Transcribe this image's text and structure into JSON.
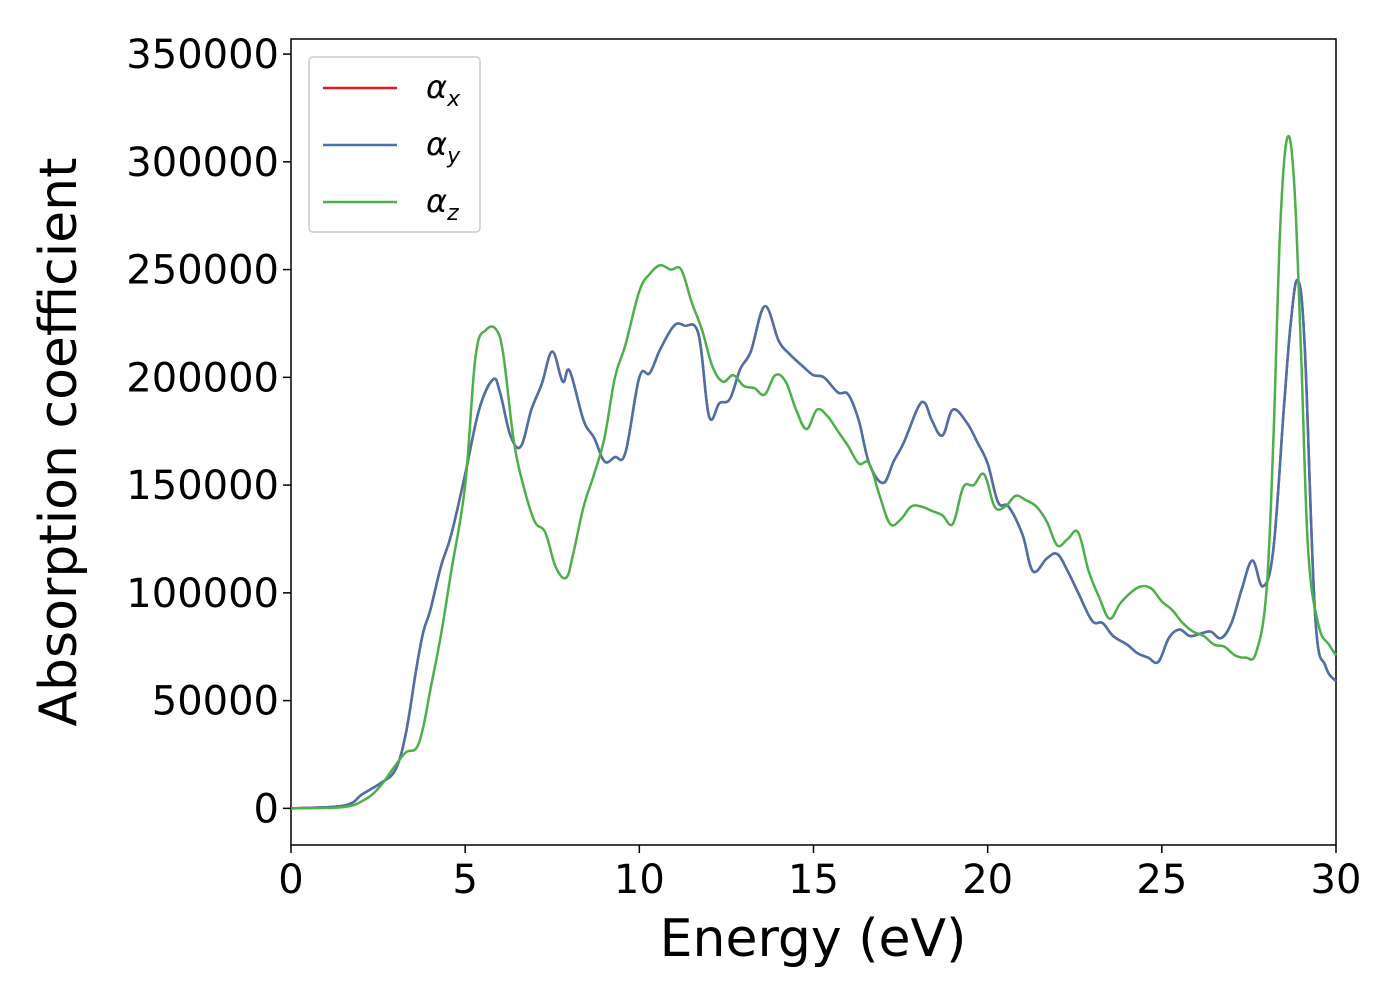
{
  "chart_data": {
    "type": "line",
    "xlabel": "Energy (eV)",
    "ylabel": "Absorption coefficient",
    "xlim": [
      0,
      30
    ],
    "ylim": [
      -17000,
      357000
    ],
    "xticks": [
      0,
      5,
      10,
      15,
      20,
      25,
      30
    ],
    "yticks": [
      0,
      50000,
      100000,
      150000,
      200000,
      250000,
      300000,
      350000
    ],
    "grid": false,
    "legend_position": "top-left",
    "series": [
      {
        "name": "αx",
        "name_base": "α",
        "name_sub": "x",
        "color": "#e41a1c",
        "x": [
          0,
          1,
          1.5,
          1.8,
          2,
          2.3,
          2.6,
          3,
          3.3,
          3.6,
          3.8,
          4,
          4.3,
          4.6,
          5,
          5.4,
          5.8,
          6,
          6.3,
          6.6,
          6.9,
          7.2,
          7.5,
          7.8,
          8,
          8.4,
          8.7,
          9,
          9.3,
          9.6,
          10,
          10.3,
          10.6,
          11,
          11.3,
          11.7,
          12,
          12.3,
          12.6,
          12.9,
          13.2,
          13.6,
          14,
          14.3,
          14.7,
          15,
          15.3,
          15.7,
          16,
          16.3,
          16.6,
          17,
          17.3,
          17.6,
          18,
          18.2,
          18.4,
          18.7,
          19,
          19.4,
          19.7,
          20,
          20.3,
          20.6,
          21,
          21.3,
          21.7,
          22,
          22.3,
          22.6,
          23,
          23.3,
          23.6,
          24,
          24.3,
          24.6,
          24.9,
          25.2,
          25.5,
          25.8,
          26.1,
          26.4,
          26.7,
          27,
          27.3,
          27.6,
          27.9,
          28.2,
          28.5,
          28.7,
          28.9,
          29.1,
          29.4,
          29.7,
          30
        ],
        "values": [
          0,
          500,
          1200,
          3000,
          6000,
          9000,
          12000,
          18000,
          35000,
          65000,
          82000,
          92000,
          112000,
          127000,
          155000,
          185000,
          199000,
          193000,
          173000,
          168000,
          185000,
          197000,
          212000,
          198000,
          203000,
          180000,
          172000,
          161000,
          163000,
          165000,
          200000,
          202000,
          213000,
          224000,
          224000,
          220000,
          182000,
          188000,
          190000,
          204000,
          212000,
          233000,
          217000,
          211000,
          205000,
          201000,
          200000,
          193000,
          192000,
          180000,
          160000,
          151000,
          161000,
          170000,
          186000,
          188000,
          180000,
          173000,
          185000,
          179000,
          170000,
          160000,
          142000,
          140000,
          127000,
          110000,
          116000,
          118000,
          110000,
          100000,
          87000,
          86000,
          80000,
          76000,
          72000,
          70000,
          68000,
          79000,
          83000,
          80000,
          81000,
          82000,
          79000,
          86000,
          102000,
          115000,
          103000,
          120000,
          185000,
          225000,
          245000,
          215000,
          90000,
          66000,
          59000
        ],
        "legend_label": "α"
      },
      {
        "name": "αy",
        "name_base": "α",
        "name_sub": "y",
        "color": "#4a72a8",
        "x": [
          0,
          1,
          1.5,
          1.8,
          2,
          2.3,
          2.6,
          3,
          3.3,
          3.6,
          3.8,
          4,
          4.3,
          4.6,
          5,
          5.4,
          5.8,
          6,
          6.3,
          6.6,
          6.9,
          7.2,
          7.5,
          7.8,
          8,
          8.4,
          8.7,
          9,
          9.3,
          9.6,
          10,
          10.3,
          10.6,
          11,
          11.3,
          11.7,
          12,
          12.3,
          12.6,
          12.9,
          13.2,
          13.6,
          14,
          14.3,
          14.7,
          15,
          15.3,
          15.7,
          16,
          16.3,
          16.6,
          17,
          17.3,
          17.6,
          18,
          18.2,
          18.4,
          18.7,
          19,
          19.4,
          19.7,
          20,
          20.3,
          20.6,
          21,
          21.3,
          21.7,
          22,
          22.3,
          22.6,
          23,
          23.3,
          23.6,
          24,
          24.3,
          24.6,
          24.9,
          25.2,
          25.5,
          25.8,
          26.1,
          26.4,
          26.7,
          27,
          27.3,
          27.6,
          27.9,
          28.2,
          28.5,
          28.7,
          28.9,
          29.1,
          29.4,
          29.7,
          30
        ],
        "values": [
          0,
          500,
          1200,
          3000,
          6000,
          9000,
          12000,
          18000,
          35000,
          65000,
          82000,
          92000,
          112000,
          127000,
          155000,
          185000,
          199000,
          193000,
          173000,
          168000,
          185000,
          197000,
          212000,
          198000,
          203000,
          180000,
          172000,
          161000,
          163000,
          165000,
          200000,
          202000,
          213000,
          224000,
          224000,
          220000,
          182000,
          188000,
          190000,
          204000,
          212000,
          233000,
          217000,
          211000,
          205000,
          201000,
          200000,
          193000,
          192000,
          180000,
          160000,
          151000,
          161000,
          170000,
          186000,
          188000,
          180000,
          173000,
          185000,
          179000,
          170000,
          160000,
          142000,
          140000,
          127000,
          110000,
          116000,
          118000,
          110000,
          100000,
          87000,
          86000,
          80000,
          76000,
          72000,
          70000,
          68000,
          79000,
          83000,
          80000,
          81000,
          82000,
          79000,
          86000,
          102000,
          115000,
          103000,
          120000,
          185000,
          225000,
          245000,
          215000,
          90000,
          66000,
          59000
        ],
        "legend_label": "α"
      },
      {
        "name": "αz",
        "name_base": "α",
        "name_sub": "z",
        "color": "#4daf4a",
        "x": [
          0,
          1,
          1.5,
          1.8,
          2,
          2.3,
          2.6,
          3,
          3.3,
          3.6,
          3.8,
          4,
          4.3,
          4.6,
          5,
          5.3,
          5.6,
          5.9,
          6.1,
          6.4,
          6.7,
          7,
          7.3,
          7.6,
          7.9,
          8.1,
          8.4,
          8.7,
          9,
          9.3,
          9.6,
          10,
          10.3,
          10.6,
          10.9,
          11.2,
          11.5,
          11.8,
          12.1,
          12.4,
          12.7,
          13,
          13.3,
          13.6,
          13.9,
          14.2,
          14.5,
          14.8,
          15.1,
          15.4,
          15.7,
          16,
          16.3,
          16.6,
          16.9,
          17.2,
          17.5,
          17.8,
          18.1,
          18.4,
          18.7,
          19,
          19.3,
          19.6,
          19.9,
          20.2,
          20.5,
          20.8,
          21.1,
          21.4,
          21.7,
          22,
          22.3,
          22.6,
          22.9,
          23.2,
          23.5,
          23.8,
          24.1,
          24.4,
          24.7,
          25,
          25.3,
          25.6,
          25.9,
          26.2,
          26.5,
          26.8,
          27.1,
          27.4,
          27.7,
          28,
          28.2,
          28.4,
          28.6,
          28.8,
          29,
          29.2,
          29.5,
          29.8,
          30
        ],
        "values": [
          0,
          200,
          600,
          1500,
          3000,
          6000,
          11000,
          20000,
          26000,
          28000,
          38000,
          55000,
          80000,
          110000,
          150000,
          210000,
          222000,
          222000,
          210000,
          170000,
          148000,
          133000,
          128000,
          112000,
          107000,
          118000,
          140000,
          155000,
          172000,
          200000,
          215000,
          240000,
          248000,
          252000,
          250000,
          250000,
          235000,
          222000,
          205000,
          198000,
          201000,
          196000,
          195000,
          192000,
          201000,
          198000,
          185000,
          176000,
          185000,
          182000,
          175000,
          168000,
          160000,
          160000,
          145000,
          132000,
          134000,
          140000,
          140000,
          138000,
          136000,
          132000,
          149000,
          150000,
          155000,
          140000,
          140000,
          145000,
          143000,
          140000,
          133000,
          122000,
          125000,
          128000,
          110000,
          98000,
          88000,
          95000,
          100000,
          103000,
          102000,
          96000,
          92000,
          86000,
          82000,
          80000,
          76000,
          75000,
          71000,
          70000,
          72000,
          100000,
          170000,
          270000,
          311000,
          290000,
          210000,
          120000,
          85000,
          76000,
          71000
        ],
        "legend_label": "α"
      }
    ]
  }
}
